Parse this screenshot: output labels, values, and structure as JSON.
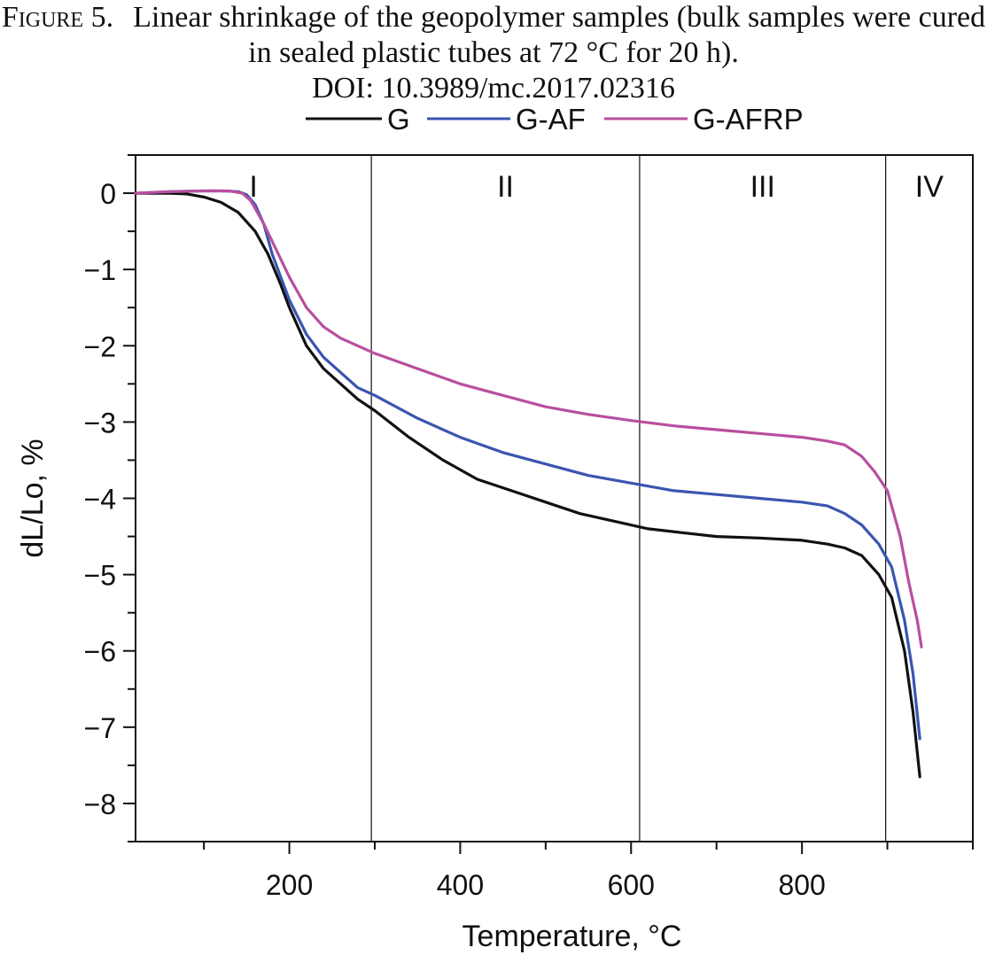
{
  "caption": {
    "label": "Figure 5.",
    "text": "Linear shrinkage of the geopolymer samples (bulk samples were cured in sealed plastic tubes at 72 °C for 20 h).",
    "doi": "DOI: 10.3989/mc.2017.02316"
  },
  "chart_data": {
    "type": "line",
    "title": "",
    "xlabel": "Temperature, °C",
    "ylabel": "dL/Lo, %",
    "xlim": [
      20,
      1000
    ],
    "ylim": [
      -8.5,
      0.5
    ],
    "x_ticks": [
      200,
      400,
      600,
      800
    ],
    "y_ticks": [
      0,
      -1,
      -2,
      -3,
      -4,
      -5,
      -6,
      -7,
      -8
    ],
    "y_tick_labels": [
      "0",
      "−1",
      "−2",
      "−3",
      "−4",
      "−5",
      "−6",
      "−7",
      "−8"
    ],
    "grid": false,
    "legend_position": "top",
    "regions": [
      {
        "label": "I",
        "from": 20,
        "to": 296
      },
      {
        "label": "II",
        "from": 296,
        "to": 610
      },
      {
        "label": "III",
        "from": 610,
        "to": 898
      },
      {
        "label": "IV",
        "from": 898,
        "to": 1000
      }
    ],
    "region_boundaries": [
      296,
      610,
      898
    ],
    "series": [
      {
        "name": "G",
        "color": "#111111",
        "points": [
          [
            20,
            0
          ],
          [
            60,
            0
          ],
          [
            80,
            -0.01
          ],
          [
            100,
            -0.05
          ],
          [
            120,
            -0.12
          ],
          [
            140,
            -0.25
          ],
          [
            160,
            -0.5
          ],
          [
            175,
            -0.8
          ],
          [
            190,
            -1.2
          ],
          [
            200,
            -1.5
          ],
          [
            220,
            -2.0
          ],
          [
            240,
            -2.3
          ],
          [
            260,
            -2.5
          ],
          [
            280,
            -2.7
          ],
          [
            300,
            -2.85
          ],
          [
            340,
            -3.2
          ],
          [
            380,
            -3.5
          ],
          [
            420,
            -3.75
          ],
          [
            460,
            -3.9
          ],
          [
            500,
            -4.05
          ],
          [
            540,
            -4.2
          ],
          [
            580,
            -4.3
          ],
          [
            620,
            -4.4
          ],
          [
            660,
            -4.45
          ],
          [
            700,
            -4.5
          ],
          [
            750,
            -4.52
          ],
          [
            800,
            -4.55
          ],
          [
            830,
            -4.6
          ],
          [
            850,
            -4.65
          ],
          [
            870,
            -4.75
          ],
          [
            890,
            -5.0
          ],
          [
            905,
            -5.3
          ],
          [
            920,
            -6.0
          ],
          [
            930,
            -6.8
          ],
          [
            938,
            -7.65
          ]
        ]
      },
      {
        "name": "G-AF",
        "color": "#3a55b0",
        "points": [
          [
            20,
            0
          ],
          [
            60,
            0.02
          ],
          [
            100,
            0.03
          ],
          [
            120,
            0.03
          ],
          [
            140,
            0.02
          ],
          [
            150,
            -0.02
          ],
          [
            160,
            -0.15
          ],
          [
            170,
            -0.4
          ],
          [
            180,
            -0.8
          ],
          [
            190,
            -1.1
          ],
          [
            200,
            -1.4
          ],
          [
            220,
            -1.85
          ],
          [
            240,
            -2.15
          ],
          [
            260,
            -2.35
          ],
          [
            280,
            -2.55
          ],
          [
            300,
            -2.65
          ],
          [
            350,
            -2.95
          ],
          [
            400,
            -3.2
          ],
          [
            450,
            -3.4
          ],
          [
            500,
            -3.55
          ],
          [
            550,
            -3.7
          ],
          [
            600,
            -3.8
          ],
          [
            650,
            -3.9
          ],
          [
            700,
            -3.95
          ],
          [
            750,
            -4.0
          ],
          [
            800,
            -4.05
          ],
          [
            830,
            -4.1
          ],
          [
            850,
            -4.2
          ],
          [
            870,
            -4.35
          ],
          [
            890,
            -4.6
          ],
          [
            905,
            -4.9
          ],
          [
            920,
            -5.6
          ],
          [
            930,
            -6.3
          ],
          [
            938,
            -7.15
          ]
        ]
      },
      {
        "name": "G-AFRP",
        "color": "#b84f9f",
        "points": [
          [
            20,
            0
          ],
          [
            60,
            0.02
          ],
          [
            100,
            0.03
          ],
          [
            130,
            0.03
          ],
          [
            145,
            0
          ],
          [
            155,
            -0.1
          ],
          [
            170,
            -0.4
          ],
          [
            185,
            -0.75
          ],
          [
            200,
            -1.1
          ],
          [
            220,
            -1.5
          ],
          [
            240,
            -1.75
          ],
          [
            260,
            -1.9
          ],
          [
            280,
            -2.0
          ],
          [
            300,
            -2.1
          ],
          [
            350,
            -2.3
          ],
          [
            400,
            -2.5
          ],
          [
            450,
            -2.65
          ],
          [
            500,
            -2.8
          ],
          [
            550,
            -2.9
          ],
          [
            600,
            -2.98
          ],
          [
            650,
            -3.05
          ],
          [
            700,
            -3.1
          ],
          [
            750,
            -3.15
          ],
          [
            800,
            -3.2
          ],
          [
            830,
            -3.25
          ],
          [
            850,
            -3.3
          ],
          [
            870,
            -3.45
          ],
          [
            885,
            -3.65
          ],
          [
            900,
            -3.9
          ],
          [
            915,
            -4.5
          ],
          [
            925,
            -5.1
          ],
          [
            935,
            -5.6
          ],
          [
            940,
            -5.95
          ]
        ]
      }
    ]
  }
}
